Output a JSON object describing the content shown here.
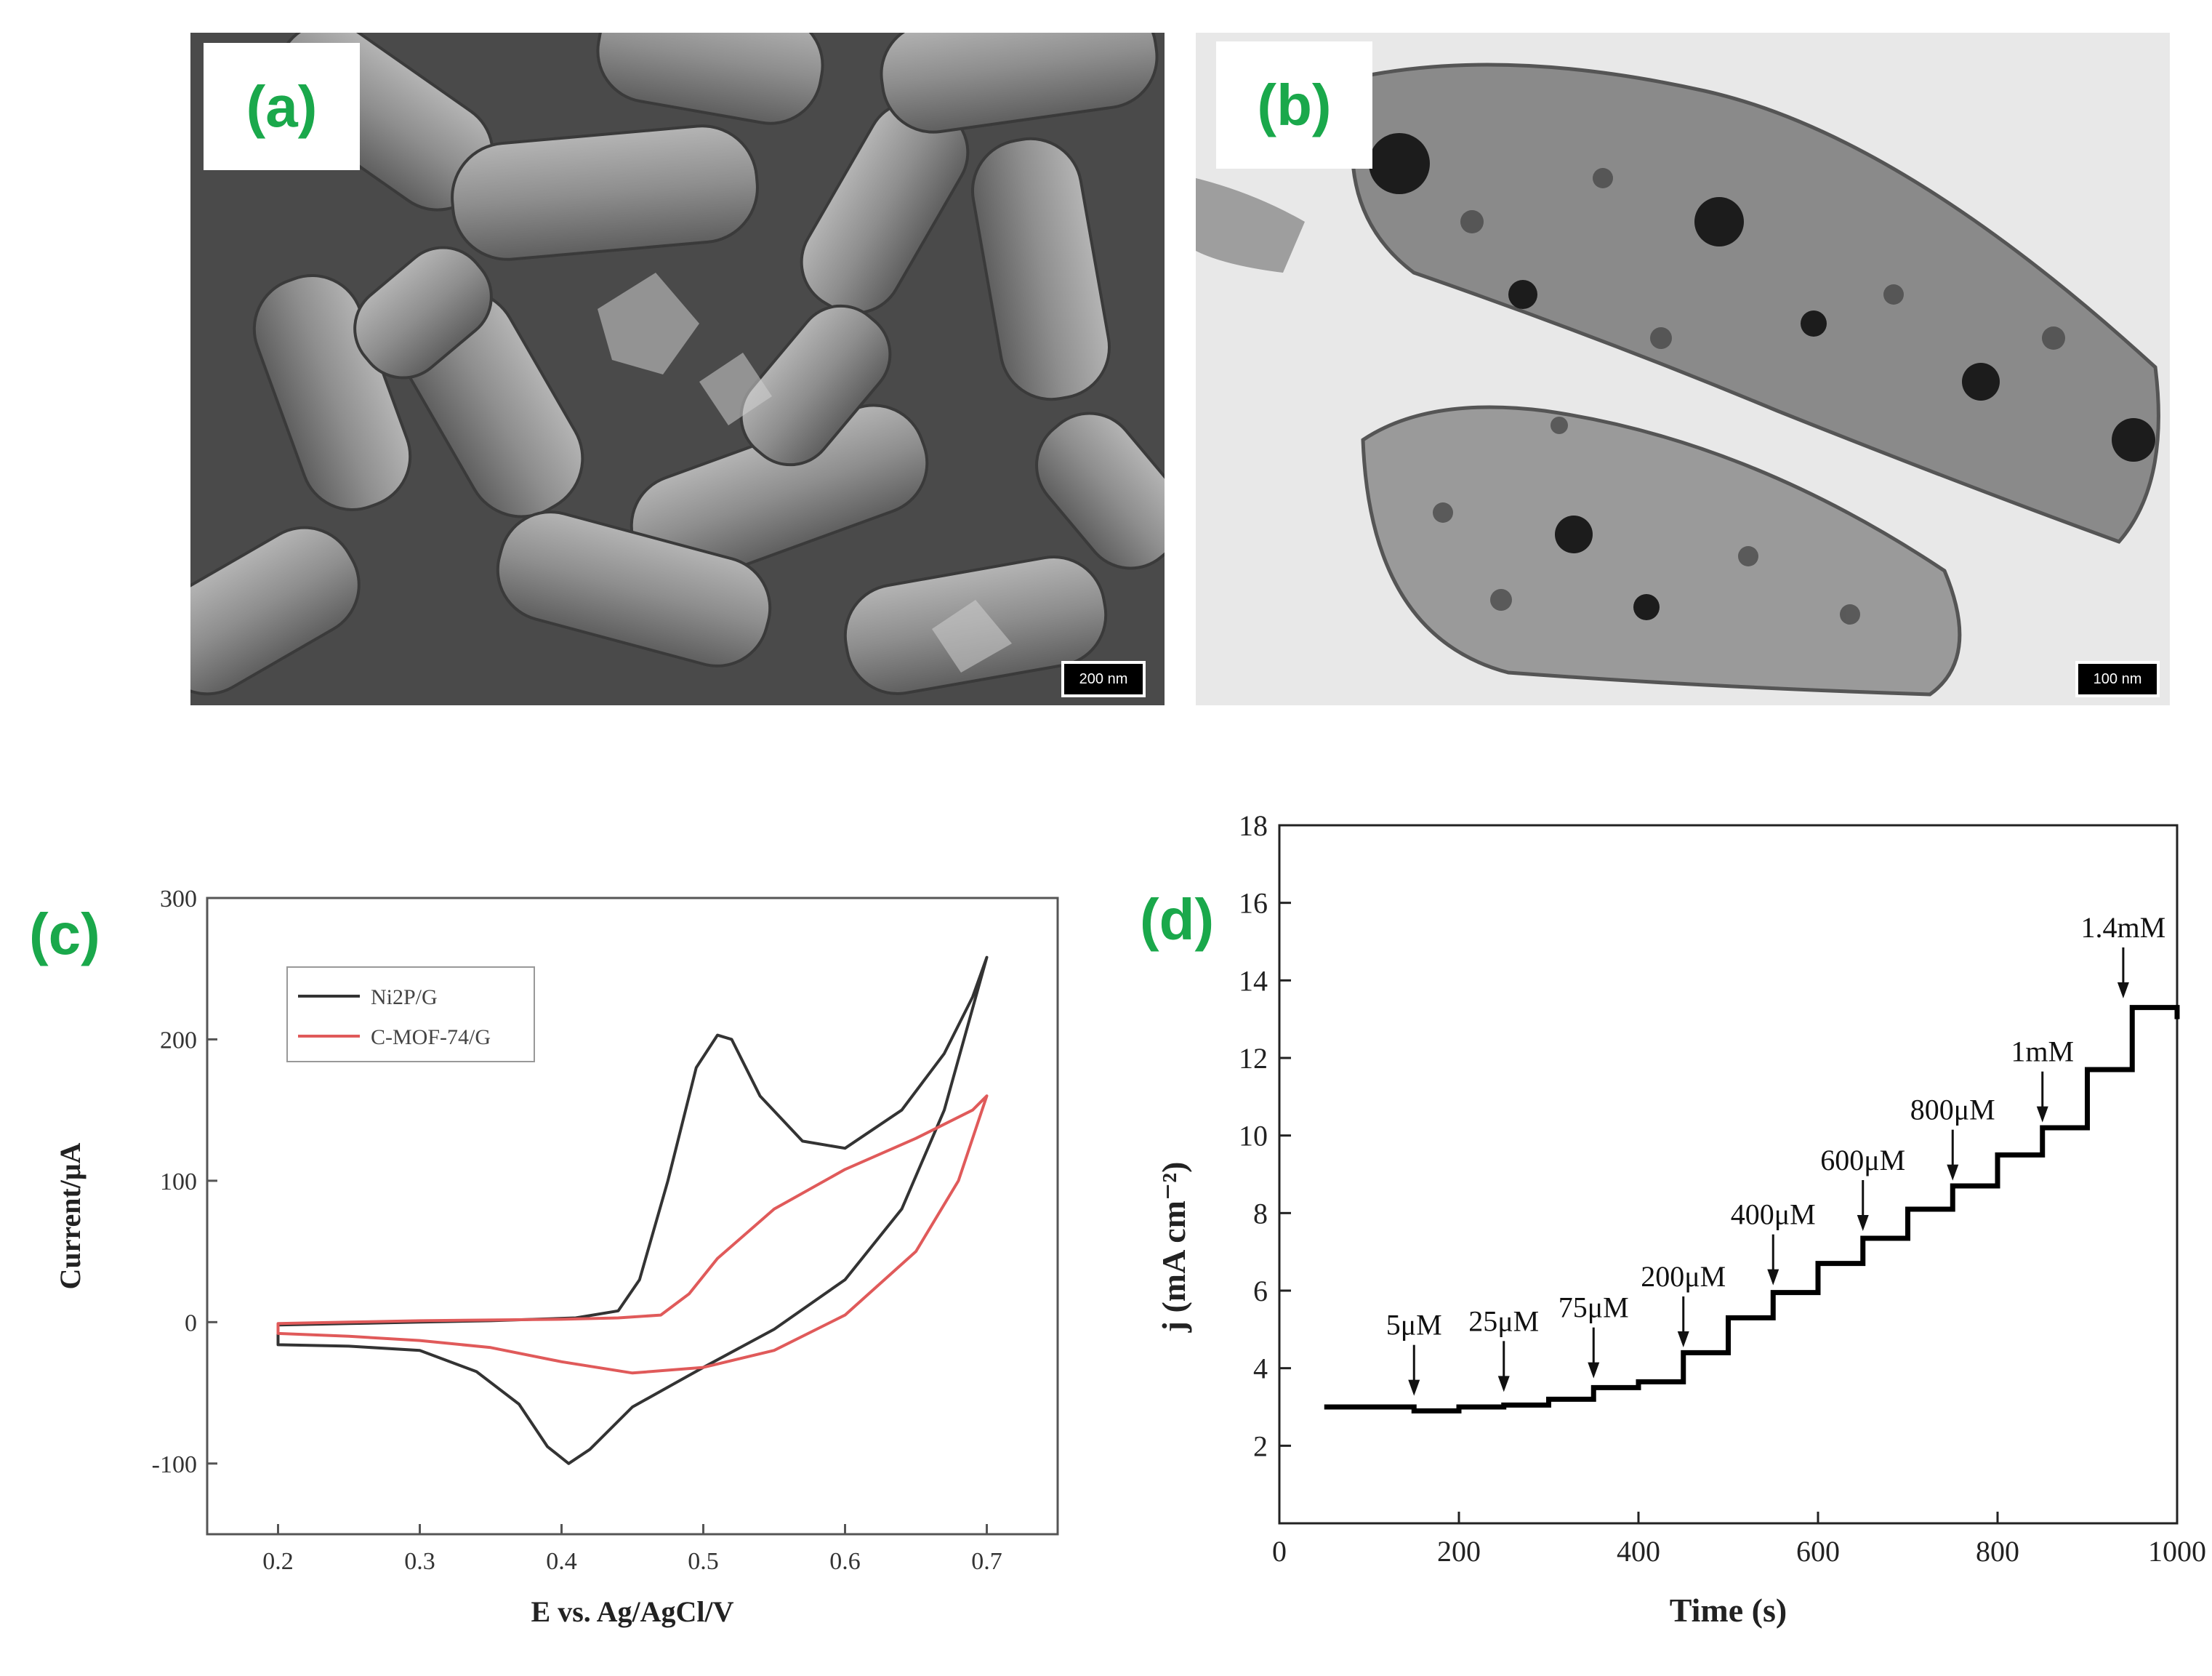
{
  "panels": {
    "a": {
      "label": "(a)",
      "scale_bar": "200 nm"
    },
    "b": {
      "label": "(b)",
      "scale_bar": "100 nm"
    },
    "c": {
      "label": "(c)"
    },
    "d": {
      "label": "(d)"
    }
  },
  "chart_data": [
    {
      "id": "c",
      "type": "line",
      "xlabel": "E vs. Ag/AgCl/V",
      "ylabel": "Current/μA",
      "xlim": [
        0.15,
        0.75
      ],
      "ylim": [
        -150,
        300
      ],
      "xticks": [
        0.2,
        0.3,
        0.4,
        0.5,
        0.6,
        0.7
      ],
      "xtick_labels": [
        "0.2",
        "0.3",
        "0.4",
        "0.5",
        "0.6",
        "0.7"
      ],
      "yticks": [
        -100,
        0,
        100,
        200,
        300
      ],
      "ytick_labels": [
        "-100",
        "0",
        "100",
        "200",
        "300"
      ],
      "legend": {
        "placement": "top-left"
      },
      "series": [
        {
          "name": "Ni2P/G",
          "color": "#333333",
          "points": [
            [
              0.2,
              -16
            ],
            [
              0.25,
              -17
            ],
            [
              0.3,
              -20
            ],
            [
              0.34,
              -35
            ],
            [
              0.37,
              -58
            ],
            [
              0.39,
              -88
            ],
            [
              0.405,
              -100
            ],
            [
              0.42,
              -90
            ],
            [
              0.45,
              -60
            ],
            [
              0.5,
              -32
            ],
            [
              0.55,
              -5
            ],
            [
              0.6,
              30
            ],
            [
              0.64,
              80
            ],
            [
              0.67,
              150
            ],
            [
              0.7,
              258
            ],
            [
              0.69,
              230
            ],
            [
              0.67,
              190
            ],
            [
              0.64,
              150
            ],
            [
              0.6,
              123
            ],
            [
              0.57,
              128
            ],
            [
              0.54,
              160
            ],
            [
              0.52,
              200
            ],
            [
              0.51,
              203
            ],
            [
              0.495,
              180
            ],
            [
              0.475,
              100
            ],
            [
              0.455,
              30
            ],
            [
              0.44,
              8
            ],
            [
              0.41,
              3
            ],
            [
              0.35,
              1
            ],
            [
              0.3,
              0
            ],
            [
              0.25,
              -1
            ],
            [
              0.2,
              -2
            ]
          ]
        },
        {
          "name": "C-MOF-74/G",
          "color": "#e05a5a",
          "points": [
            [
              0.2,
              -8
            ],
            [
              0.25,
              -10
            ],
            [
              0.3,
              -13
            ],
            [
              0.35,
              -18
            ],
            [
              0.4,
              -28
            ],
            [
              0.45,
              -36
            ],
            [
              0.5,
              -32
            ],
            [
              0.55,
              -20
            ],
            [
              0.6,
              5
            ],
            [
              0.65,
              50
            ],
            [
              0.68,
              100
            ],
            [
              0.7,
              160
            ],
            [
              0.69,
              150
            ],
            [
              0.65,
              130
            ],
            [
              0.6,
              108
            ],
            [
              0.55,
              80
            ],
            [
              0.51,
              45
            ],
            [
              0.49,
              20
            ],
            [
              0.47,
              5
            ],
            [
              0.44,
              3
            ],
            [
              0.4,
              2
            ],
            [
              0.3,
              1
            ],
            [
              0.25,
              0
            ],
            [
              0.2,
              -1
            ]
          ]
        }
      ]
    },
    {
      "id": "d",
      "type": "line",
      "xlabel": "Time (s)",
      "ylabel": "j (mA cm⁻²)",
      "xlim": [
        0,
        1000
      ],
      "ylim": [
        0,
        18
      ],
      "xticks": [
        0,
        200,
        400,
        600,
        800,
        1000
      ],
      "xtick_labels": [
        "0",
        "200",
        "400",
        "600",
        "800",
        "1000"
      ],
      "yticks": [
        2,
        4,
        6,
        8,
        10,
        12,
        14,
        16,
        18
      ],
      "ytick_labels": [
        "2",
        "4",
        "6",
        "8",
        "10",
        "12",
        "14",
        "16",
        "18"
      ],
      "steps": [
        [
          50,
          3.0
        ],
        [
          150,
          2.9
        ],
        [
          200,
          3.0
        ],
        [
          250,
          3.05
        ],
        [
          300,
          3.2
        ],
        [
          350,
          3.5
        ],
        [
          400,
          3.65
        ],
        [
          450,
          4.4
        ],
        [
          500,
          5.3
        ],
        [
          550,
          5.95
        ],
        [
          600,
          6.7
        ],
        [
          650,
          7.35
        ],
        [
          700,
          8.1
        ],
        [
          750,
          8.7
        ],
        [
          800,
          9.5
        ],
        [
          850,
          10.2
        ],
        [
          900,
          11.7
        ],
        [
          950,
          13.3
        ],
        [
          1000,
          13.0
        ]
      ],
      "annotations": [
        {
          "text": "5μM",
          "x": 150,
          "y": 2.95
        },
        {
          "text": "25μM",
          "x": 250,
          "y": 3.05
        },
        {
          "text": "75μM",
          "x": 350,
          "y": 3.4
        },
        {
          "text": "200μM",
          "x": 450,
          "y": 4.2
        },
        {
          "text": "400μM",
          "x": 550,
          "y": 5.8
        },
        {
          "text": "600μM",
          "x": 650,
          "y": 7.2
        },
        {
          "text": "800μM",
          "x": 750,
          "y": 8.5
        },
        {
          "text": "1mM",
          "x": 850,
          "y": 10.0
        },
        {
          "text": "1.4mM",
          "x": 940,
          "y": 13.2
        }
      ]
    }
  ]
}
